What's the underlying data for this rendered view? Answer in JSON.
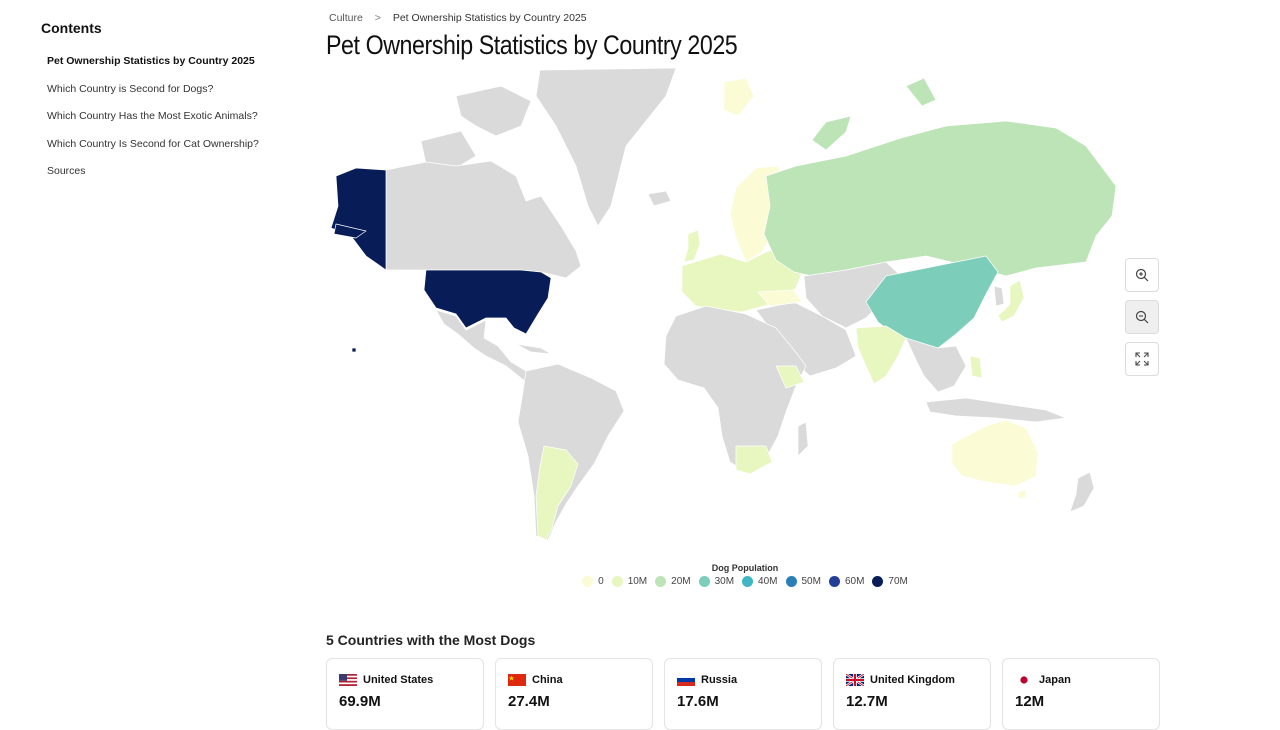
{
  "sidebar": {
    "title": "Contents",
    "items": [
      {
        "label": "Pet Ownership Statistics by Country 2025",
        "active": true
      },
      {
        "label": "Which Country is Second for Dogs?"
      },
      {
        "label": "Which Country Has the Most Exotic Animals?"
      },
      {
        "label": "Which Country Is Second for Cat Ownership?"
      },
      {
        "label": "Sources"
      }
    ]
  },
  "breadcrumb": {
    "parent": "Culture",
    "separator": ">",
    "current": "Pet Ownership Statistics by Country 2025"
  },
  "page_title": "Pet Ownership Statistics by Country 2025",
  "map": {
    "metric": "Dog Population",
    "no_data_color": "#dadada",
    "scale": [
      {
        "label": "0",
        "color": "#fbfbd5"
      },
      {
        "label": "10M",
        "color": "#e8f6c0"
      },
      {
        "label": "20M",
        "color": "#bce4b6"
      },
      {
        "label": "30M",
        "color": "#7ccdba"
      },
      {
        "label": "40M",
        "color": "#40b5c4"
      },
      {
        "label": "50M",
        "color": "#2b7fb8"
      },
      {
        "label": "60M",
        "color": "#243e97"
      },
      {
        "label": "70M",
        "color": "#081d58"
      }
    ],
    "highlighted_regions": [
      {
        "region": "United States",
        "bucket": "70M"
      },
      {
        "region": "China",
        "bucket": "30M"
      },
      {
        "region": "Russia",
        "bucket": "20M"
      },
      {
        "region": "Greenland",
        "bucket": "no-data"
      }
    ],
    "controls": [
      {
        "name": "zoom-in-button",
        "icon": "zoom-in-icon"
      },
      {
        "name": "zoom-out-button",
        "icon": "zoom-out-icon"
      },
      {
        "name": "fullscreen-button",
        "icon": "expand-icon"
      }
    ]
  },
  "top_countries": {
    "title": "5 Countries with the Most Dogs",
    "items": [
      {
        "country": "United States",
        "value": "69.9M",
        "flag": "us-flag"
      },
      {
        "country": "China",
        "value": "27.4M",
        "flag": "china-flag"
      },
      {
        "country": "Russia",
        "value": "17.6M",
        "flag": "russia-flag"
      },
      {
        "country": "United Kingdom",
        "value": "12.7M",
        "flag": "uk-flag"
      },
      {
        "country": "Japan",
        "value": "12M",
        "flag": "japan-flag"
      }
    ]
  }
}
